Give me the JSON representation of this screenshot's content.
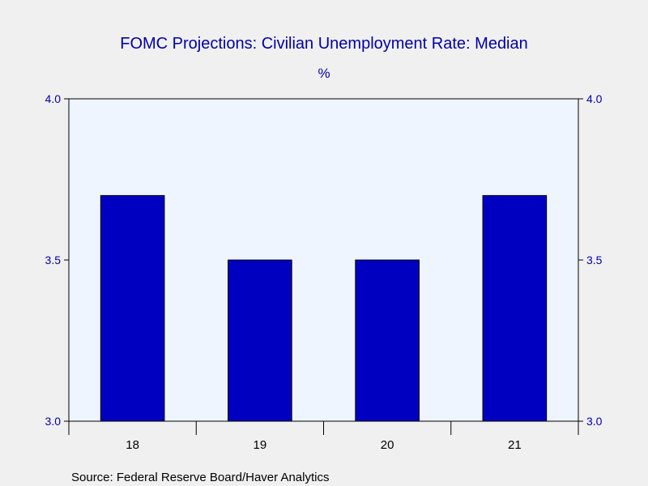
{
  "chart_data": {
    "type": "bar",
    "title": "FOMC Projections: Civilian Unemployment Rate: Median",
    "unit_label": "%",
    "categories": [
      "18",
      "19",
      "20",
      "21"
    ],
    "values": [
      3.7,
      3.5,
      3.5,
      3.7
    ],
    "ylim": [
      3.0,
      4.0
    ],
    "y_ticks": [
      "3.0",
      "3.5",
      "4.0"
    ],
    "y_tick_values": [
      3.0,
      3.5,
      4.0
    ],
    "source": "Source:  Federal Reserve Board/Haver Analytics",
    "colors": {
      "bar": "#0000c0",
      "plot_background": "#eef5ff",
      "page_background": "#f0f0f0",
      "text_accent": "#0000a8"
    },
    "grid": false,
    "legend": "none"
  }
}
